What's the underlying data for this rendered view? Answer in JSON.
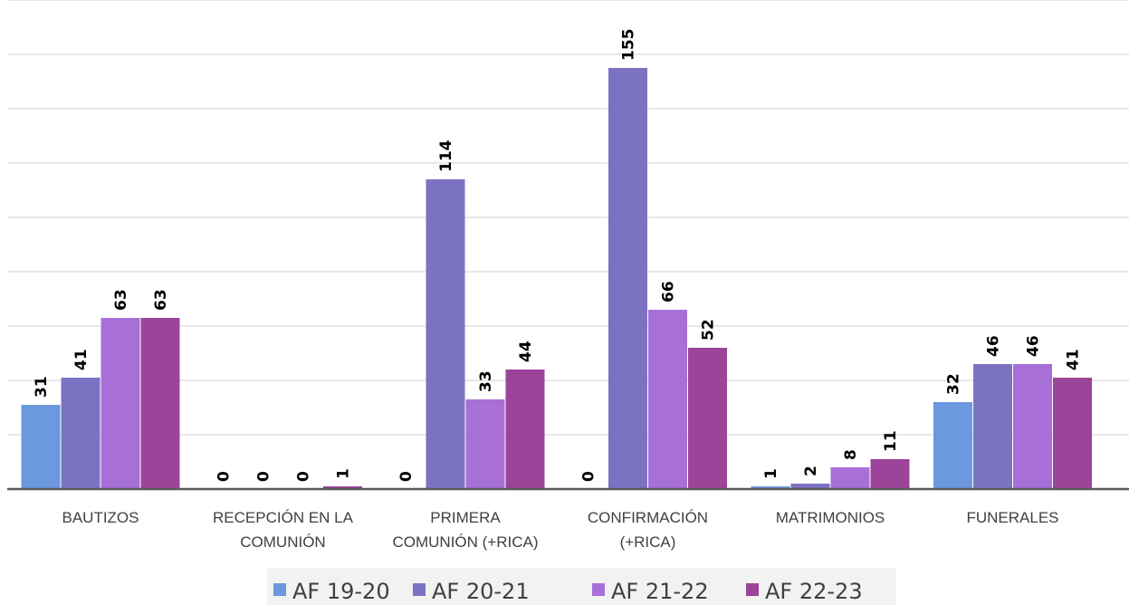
{
  "chart_data": {
    "type": "bar",
    "title": "",
    "xlabel": "",
    "ylabel": "",
    "ylim": [
      0,
      180
    ],
    "grid": true,
    "legend_position": "bottom",
    "categories": [
      [
        "BAUTIZOS"
      ],
      [
        "RECEPCIÓN EN LA",
        "COMUNIÓN"
      ],
      [
        "PRIMERA",
        "COMUNIÓN (+RICA)"
      ],
      [
        "CONFIRMACIÓN",
        "(+RICA)"
      ],
      [
        "MATRIMONIOS"
      ],
      [
        "FUNERALES"
      ]
    ],
    "series": [
      {
        "name": "AF 19-20",
        "color": "#6b98de",
        "values": [
          31,
          0,
          0,
          0,
          1,
          32
        ]
      },
      {
        "name": "AF 20-21",
        "color": "#7b73c2",
        "values": [
          41,
          0,
          114,
          155,
          2,
          46
        ]
      },
      {
        "name": "AF 21-22",
        "color": "#a86fd8",
        "values": [
          63,
          0,
          33,
          66,
          8,
          46
        ]
      },
      {
        "name": "AF 22-23",
        "color": "#9c4499",
        "values": [
          63,
          1,
          44,
          52,
          11,
          41
        ]
      }
    ]
  }
}
